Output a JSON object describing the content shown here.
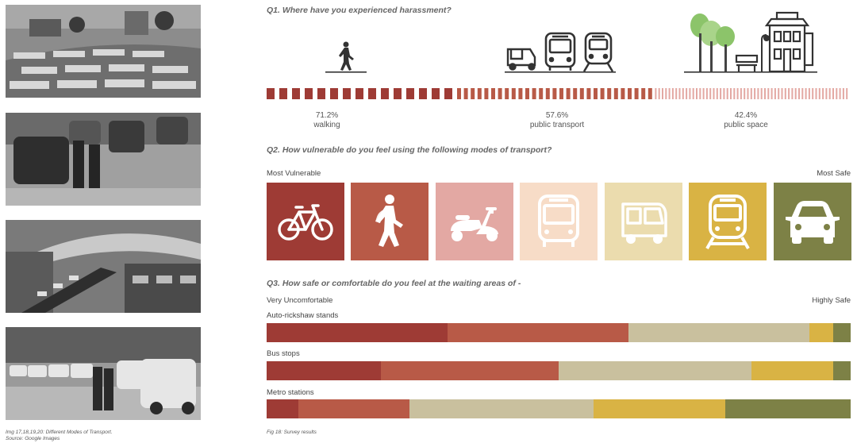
{
  "left_caption": {
    "line1": "Img 17,18,19,20: Different Modes of Transport.",
    "line2": "Source: Google Images"
  },
  "photos": [
    {
      "name": "bus-depot-photo"
    },
    {
      "name": "auto-rickshaw-stand-photo"
    },
    {
      "name": "metro-station-photo"
    },
    {
      "name": "taxi-queue-photo"
    }
  ],
  "figure_caption": "Fig 18: Survey results",
  "colors": {
    "dark_red": "#9e3b35",
    "terracotta": "#b85a47",
    "pink": "#e3a8a3",
    "peach": "#f7dcc7",
    "cream": "#ebdcae",
    "gold": "#d9b344",
    "olive": "#7d8146",
    "taupe": "#c9c09e"
  },
  "q1": {
    "title": "Q1. Where have you experienced harassment?",
    "icons": [
      "walking-person-icon",
      "auto-rickshaw-icon",
      "bus-icon",
      "train-icon",
      "trees-icon",
      "bench-icon",
      "streetlight-icon",
      "building-icon"
    ],
    "stats": [
      {
        "value": "71.2%",
        "label": "walking"
      },
      {
        "value": "57.6%",
        "label": "public transport"
      },
      {
        "value": "42.4%",
        "label": "public space"
      }
    ]
  },
  "q2": {
    "title": "Q2. How vulnerable do you feel using the following modes of transport?",
    "left_label": "Most Vulnerable",
    "right_label": "Most Safe",
    "modes": [
      {
        "icon": "bicycle-icon",
        "color": "#9e3b35"
      },
      {
        "icon": "walking-person-icon",
        "color": "#b85a47"
      },
      {
        "icon": "scooter-icon",
        "color": "#e3a8a3"
      },
      {
        "icon": "bus-icon",
        "color": "#f7dcc7"
      },
      {
        "icon": "auto-rickshaw-icon",
        "color": "#ebdcae"
      },
      {
        "icon": "train-icon",
        "color": "#d9b344"
      },
      {
        "icon": "car-icon",
        "color": "#7d8146"
      }
    ]
  },
  "q3": {
    "title": "Q3. How safe or comfortable do you feel at the waiting areas of -",
    "left_label": "Very Uncomfortable",
    "right_label": "Highly Safe"
  },
  "chart_data": {
    "type": "bar",
    "orientation": "horizontal",
    "stacked": true,
    "normalized_percent": true,
    "xlim": [
      0,
      100
    ],
    "categories": [
      "Auto-rickshaw stands",
      "Bus stops",
      "Metro stations"
    ],
    "series": [
      {
        "color": "#9e3b35",
        "values": [
          31,
          19.5,
          5.5
        ]
      },
      {
        "color": "#b85a47",
        "values": [
          31,
          30.5,
          19
        ]
      },
      {
        "color": "#c9c09e",
        "values": [
          31,
          33,
          31.5
        ]
      },
      {
        "color": "#d9b344",
        "values": [
          4,
          14,
          22.5
        ]
      },
      {
        "color": "#7d8146",
        "values": [
          3,
          3,
          21.5
        ]
      }
    ]
  }
}
